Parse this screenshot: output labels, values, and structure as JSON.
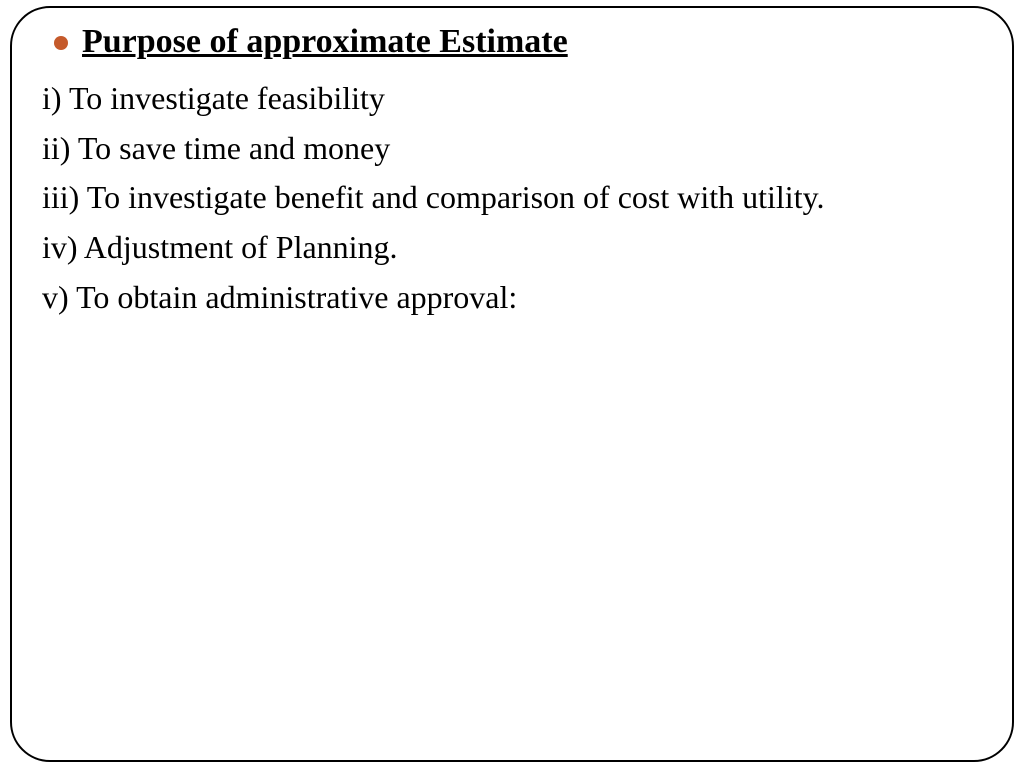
{
  "bullet_color": "#c55a2b",
  "heading_color": "#000000",
  "text_color": "#000000",
  "heading": "Purpose of approximate Estimate",
  "items": [
    "i) To investigate feasibility",
    "ii) To save time and money",
    "iii) To investigate benefit and comparison of cost with utility.",
    "iv) Adjustment of Planning.",
    "v) To obtain administrative approval:"
  ]
}
